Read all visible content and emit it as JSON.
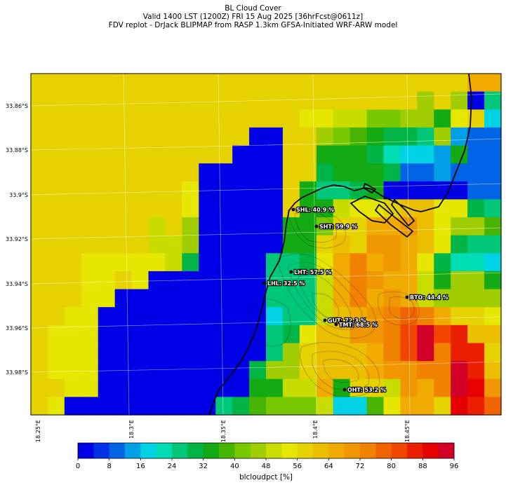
{
  "title": {
    "line1": "BL Cloud Cover",
    "line2": "Valid 1400 LST (1200Z) FRI 15 Aug 2025 [36hrFcst@0611z]",
    "line3": "FDV replot - DrJack BLIPMAP from RASP 1.3km GFSA-Initiated WRF-ARW model"
  },
  "axes": {
    "lat_labels": [
      "33.86°S",
      "33.88°S",
      "33.9°S",
      "33.92°S",
      "33.94°S",
      "33.96°S",
      "33.98°S"
    ],
    "lon_labels": [
      "18.25°E",
      "18.3°E",
      "18.35°E",
      "18.4°E",
      "18.45°E"
    ]
  },
  "stations": [
    {
      "label": "SHL: 40.9 %"
    },
    {
      "label": "SHT: 59.9 %"
    },
    {
      "label": "LHT: 57.5 %"
    },
    {
      "label": "LHL: 32.5 %"
    },
    {
      "label": "BTO: 44.4 %"
    },
    {
      "label": "GUT: 72.3 %"
    },
    {
      "label": "TMT: 68.5 %"
    },
    {
      "label": "OHT: 53.2 %"
    }
  ],
  "colorbar": {
    "ticks": [
      "0",
      "8",
      "16",
      "24",
      "32",
      "40",
      "48",
      "56",
      "64",
      "72",
      "80",
      "88",
      "96"
    ],
    "label": "blcloudpct [%]",
    "colors": [
      "#0000e6",
      "#0030e6",
      "#0064e6",
      "#00a0e6",
      "#00d2e6",
      "#00dcb4",
      "#00c878",
      "#00b446",
      "#14aa14",
      "#46b400",
      "#78c800",
      "#a0cd00",
      "#c8dc00",
      "#e6e600",
      "#e6d200",
      "#ebbe00",
      "#f0aa00",
      "#f09600",
      "#f08200",
      "#f06400",
      "#f04600",
      "#eb1e00",
      "#e60000",
      "#d20028"
    ]
  },
  "grid": {
    "rows": [
      [
        14,
        14,
        14,
        14,
        14,
        14,
        14,
        14,
        14,
        14,
        14,
        14,
        14,
        14,
        14,
        14,
        14,
        14,
        14,
        14,
        14,
        14,
        14,
        14,
        14,
        14,
        16,
        16
      ],
      [
        14,
        14,
        14,
        14,
        14,
        14,
        14,
        14,
        14,
        14,
        14,
        14,
        14,
        14,
        14,
        14,
        14,
        14,
        14,
        14,
        14,
        14,
        14,
        11,
        14,
        11,
        0,
        6
      ],
      [
        14,
        14,
        14,
        14,
        14,
        14,
        14,
        14,
        14,
        14,
        14,
        14,
        14,
        14,
        14,
        14,
        13,
        13,
        12,
        12,
        10,
        10,
        11,
        11,
        8,
        13,
        14,
        4
      ],
      [
        14,
        14,
        14,
        14,
        14,
        14,
        14,
        14,
        14,
        14,
        14,
        14,
        14,
        0,
        0,
        14,
        14,
        11,
        10,
        9,
        8,
        7,
        7,
        6,
        11,
        3,
        2,
        2
      ],
      [
        14,
        14,
        14,
        14,
        14,
        14,
        14,
        14,
        14,
        14,
        14,
        14,
        0,
        0,
        0,
        14,
        14,
        8,
        8,
        8,
        7,
        5,
        4,
        4,
        3,
        8,
        2,
        2
      ],
      [
        14,
        14,
        14,
        14,
        14,
        14,
        14,
        14,
        14,
        14,
        0,
        0,
        0,
        0,
        0,
        14,
        14,
        7,
        8,
        8,
        8,
        7,
        2,
        2,
        3,
        2,
        2,
        2
      ],
      [
        14,
        14,
        14,
        14,
        14,
        14,
        14,
        14,
        14,
        13,
        0,
        0,
        0,
        0,
        0,
        14,
        8,
        6,
        6,
        7,
        8,
        0,
        0,
        0,
        0,
        0,
        2,
        2
      ],
      [
        14,
        14,
        14,
        14,
        14,
        14,
        14,
        14,
        14,
        13,
        0,
        0,
        0,
        0,
        0,
        14,
        8,
        8,
        12,
        13,
        13,
        14,
        15,
        15,
        13,
        13,
        7,
        6
      ],
      [
        14,
        14,
        14,
        14,
        14,
        14,
        14,
        12,
        14,
        11,
        0,
        0,
        0,
        0,
        0,
        8,
        8,
        10,
        14,
        14,
        16,
        16,
        17,
        15,
        13,
        11,
        11,
        9
      ],
      [
        14,
        14,
        14,
        14,
        14,
        14,
        14,
        12,
        12,
        11,
        0,
        0,
        0,
        0,
        0,
        8,
        8,
        14,
        15,
        14,
        17,
        17,
        16,
        15,
        13,
        7,
        6,
        6
      ],
      [
        14,
        14,
        14,
        13,
        13,
        13,
        13,
        13,
        12,
        7,
        0,
        0,
        0,
        0,
        6,
        6,
        7,
        13,
        16,
        18,
        16,
        17,
        16,
        13,
        7,
        5,
        5,
        4
      ],
      [
        14,
        14,
        14,
        13,
        13,
        14,
        13,
        0,
        0,
        0,
        0,
        0,
        0,
        0,
        6,
        6,
        6,
        12,
        16,
        18,
        17,
        16,
        16,
        12,
        8,
        11,
        11,
        8
      ],
      [
        14,
        14,
        14,
        13,
        13,
        0,
        0,
        0,
        0,
        0,
        0,
        0,
        0,
        0,
        6,
        6,
        6,
        12,
        16,
        18,
        16,
        17,
        16,
        12,
        11,
        11,
        11,
        11
      ],
      [
        14,
        14,
        13,
        13,
        0,
        0,
        0,
        0,
        0,
        0,
        0,
        0,
        0,
        0,
        4,
        6,
        6,
        12,
        15,
        16,
        17,
        18,
        19,
        18,
        16,
        14,
        14,
        13
      ],
      [
        14,
        13,
        13,
        13,
        0,
        0,
        0,
        0,
        0,
        0,
        0,
        0,
        0,
        0,
        6,
        7,
        13,
        15,
        15,
        17,
        17,
        18,
        20,
        23,
        20,
        21,
        15,
        15
      ],
      [
        14,
        13,
        13,
        13,
        0,
        0,
        0,
        0,
        0,
        0,
        0,
        0,
        0,
        0,
        6,
        11,
        14,
        15,
        15,
        15,
        16,
        18,
        20,
        23,
        18,
        21,
        21,
        14
      ],
      [
        14,
        13,
        13,
        13,
        0,
        0,
        0,
        0,
        0,
        0,
        0,
        0,
        0,
        7,
        11,
        11,
        14,
        15,
        15,
        15,
        16,
        17,
        17,
        18,
        18,
        23,
        21,
        15
      ],
      [
        14,
        14,
        13,
        13,
        0,
        0,
        0,
        0,
        0,
        0,
        0,
        0,
        0,
        8,
        8,
        12,
        12,
        16,
        8,
        14,
        14,
        12,
        17,
        16,
        18,
        23,
        22,
        17
      ],
      [
        14,
        13,
        0,
        0,
        0,
        0,
        0,
        0,
        0,
        0,
        0,
        6,
        7,
        9,
        10,
        10,
        10,
        12,
        4,
        4,
        9,
        13,
        16,
        16,
        14,
        22,
        21,
        19
      ]
    ]
  }
}
